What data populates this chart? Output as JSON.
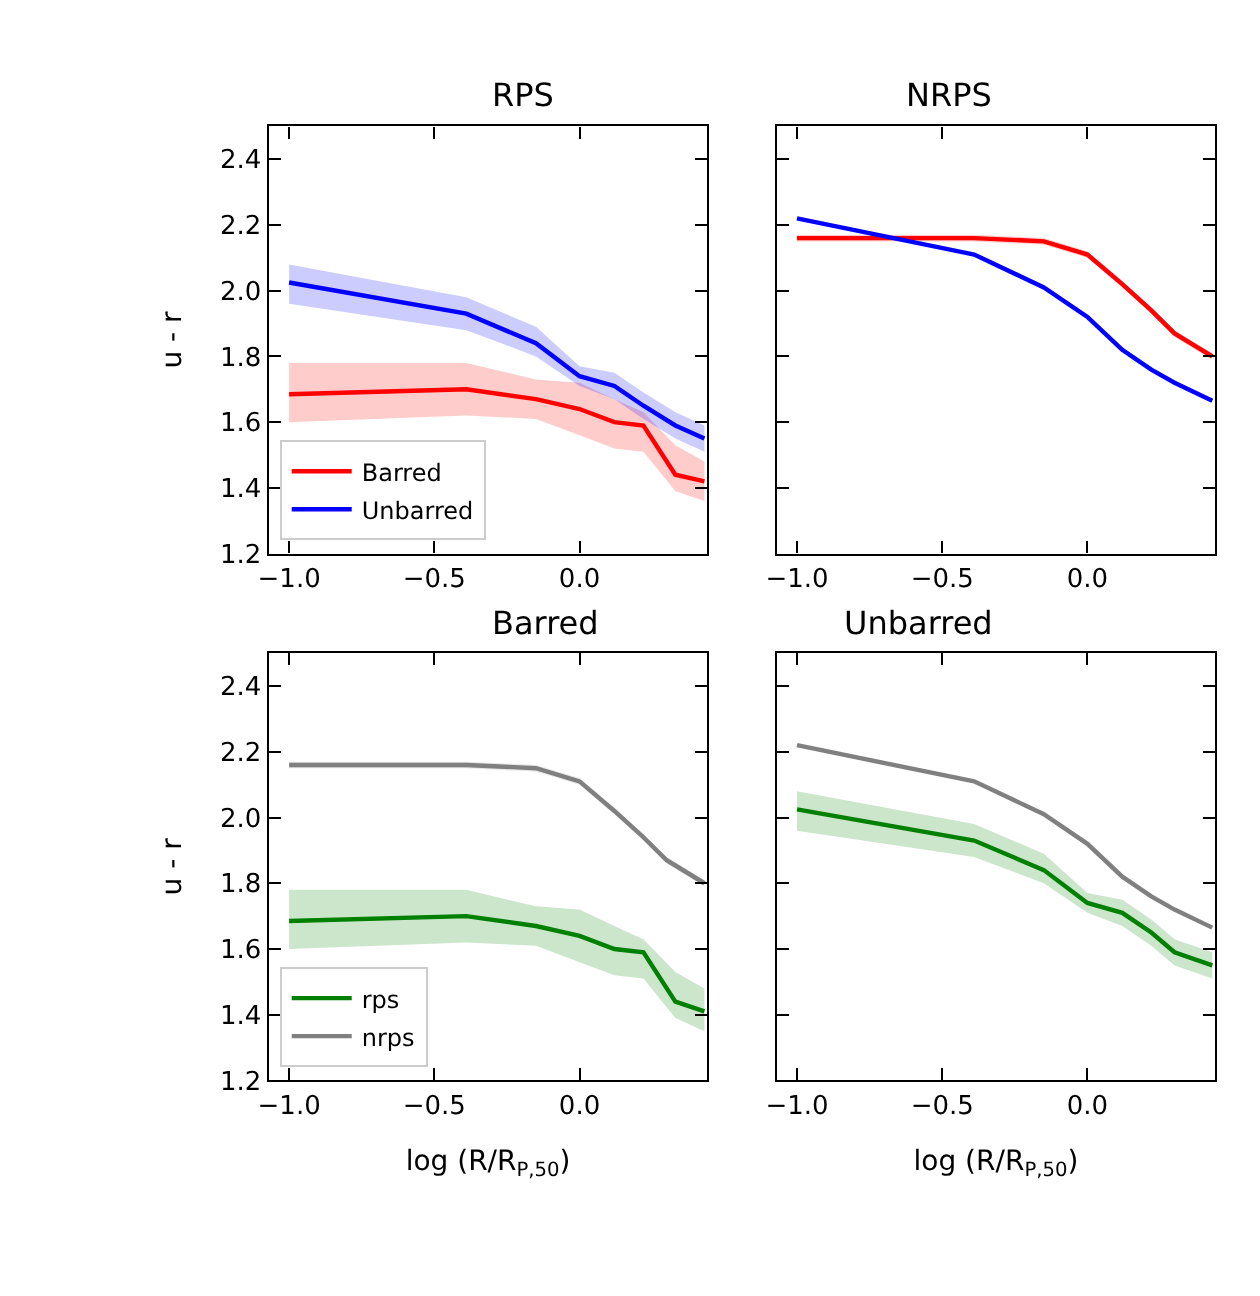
{
  "chart_data": [
    {
      "type": "line",
      "title": "RPS",
      "ylabel": "u - r",
      "legend": "bottom left",
      "xlim": [
        -1.07,
        0.44
      ],
      "ylim": [
        1.2,
        2.5
      ],
      "xticks": [
        {
          "value": -1.0,
          "label": "−1.0"
        },
        {
          "value": -0.5,
          "label": "−0.5"
        },
        {
          "value": 0.0,
          "label": "0.0"
        }
      ],
      "yticks": [
        {
          "value": 1.2,
          "label": "1.2"
        },
        {
          "value": 1.4,
          "label": "1.4"
        },
        {
          "value": 1.6,
          "label": "1.6"
        },
        {
          "value": 1.8,
          "label": "1.8"
        },
        {
          "value": 2.0,
          "label": "2.0"
        },
        {
          "value": 2.2,
          "label": "2.2"
        },
        {
          "value": 2.4,
          "label": "2.4"
        }
      ],
      "x": [
        -1.0,
        -0.39,
        -0.15,
        0.0,
        0.12,
        0.22,
        0.33,
        0.43
      ],
      "series": [
        {
          "name": "Barred",
          "color": "#ff0000",
          "values": [
            1.685,
            1.7,
            1.67,
            1.64,
            1.6,
            1.59,
            1.44,
            1.42
          ],
          "lower": [
            1.6,
            1.62,
            1.61,
            1.56,
            1.52,
            1.51,
            1.39,
            1.36
          ],
          "upper": [
            1.78,
            1.78,
            1.73,
            1.72,
            1.67,
            1.63,
            1.53,
            1.48
          ]
        },
        {
          "name": "Unbarred",
          "color": "#0000ff",
          "values": [
            2.025,
            1.93,
            1.84,
            1.74,
            1.71,
            1.65,
            1.59,
            1.55
          ],
          "lower": [
            1.96,
            1.88,
            1.8,
            1.71,
            1.67,
            1.61,
            1.55,
            1.51
          ],
          "upper": [
            2.08,
            1.98,
            1.89,
            1.77,
            1.75,
            1.69,
            1.63,
            1.59
          ]
        }
      ]
    },
    {
      "type": "line",
      "title": "NRPS",
      "tick_labels": "x",
      "xlim": [
        -1.07,
        0.44
      ],
      "ylim": [
        1.2,
        2.5
      ],
      "xticks": [
        {
          "value": -1.0,
          "label": "−1.0"
        },
        {
          "value": -0.5,
          "label": "−0.5"
        },
        {
          "value": 0.0,
          "label": "0.0"
        }
      ],
      "yticks": [
        1.2,
        1.4,
        1.6,
        1.8,
        2.0,
        2.2,
        2.4
      ],
      "x": [
        -1.0,
        -0.39,
        -0.15,
        0.0,
        0.12,
        0.22,
        0.3,
        0.43
      ],
      "series": [
        {
          "color": "#ff0000",
          "values": [
            2.16,
            2.16,
            2.15,
            2.11,
            2.02,
            1.94,
            1.87,
            1.8
          ],
          "lower": [
            2.15,
            2.15,
            2.14,
            2.1,
            2.01,
            1.93,
            1.86,
            1.79
          ],
          "upper": [
            2.17,
            2.17,
            2.16,
            2.12,
            2.03,
            1.95,
            1.88,
            1.81
          ]
        },
        {
          "color": "#0000ff",
          "values": [
            2.22,
            2.11,
            2.01,
            1.92,
            1.82,
            1.76,
            1.72,
            1.665
          ]
        }
      ]
    },
    {
      "type": "line",
      "title": "Barred",
      "ylabel": "u - r",
      "xlabel": "log (R/R$_{P,50}$)",
      "legend": "bottom left",
      "xlim": [
        -1.07,
        0.44
      ],
      "ylim": [
        1.2,
        2.5
      ],
      "xticks": [
        {
          "value": -1.0,
          "label": "−1.0"
        },
        {
          "value": -0.5,
          "label": "−0.5"
        },
        {
          "value": 0.0,
          "label": "0.0"
        }
      ],
      "yticks": [
        {
          "value": 1.2,
          "label": "1.2"
        },
        {
          "value": 1.4,
          "label": "1.4"
        },
        {
          "value": 1.6,
          "label": "1.6"
        },
        {
          "value": 1.8,
          "label": "1.8"
        },
        {
          "value": 2.0,
          "label": "2.0"
        },
        {
          "value": 2.2,
          "label": "2.2"
        },
        {
          "value": 2.4,
          "label": "2.4"
        }
      ],
      "x": [
        -1.0,
        -0.39,
        -0.15,
        0.0,
        0.12,
        0.22,
        0.33,
        0.43
      ],
      "series": [
        {
          "name": "rps",
          "color": "#008000",
          "values": [
            1.685,
            1.7,
            1.67,
            1.64,
            1.6,
            1.59,
            1.44,
            1.41
          ],
          "lower": [
            1.6,
            1.62,
            1.61,
            1.56,
            1.52,
            1.51,
            1.39,
            1.35
          ],
          "upper": [
            1.78,
            1.78,
            1.73,
            1.72,
            1.67,
            1.63,
            1.53,
            1.48
          ]
        },
        {
          "name": "nrps",
          "color": "#808080",
          "x": [
            -1.0,
            -0.39,
            -0.15,
            0.0,
            0.12,
            0.22,
            0.3,
            0.43
          ],
          "values": [
            2.16,
            2.16,
            2.15,
            2.11,
            2.02,
            1.94,
            1.87,
            1.8
          ],
          "lower": [
            2.15,
            2.15,
            2.14,
            2.1,
            2.01,
            1.93,
            1.86,
            1.79
          ],
          "upper": [
            2.17,
            2.17,
            2.16,
            2.12,
            2.03,
            1.95,
            1.88,
            1.81
          ]
        }
      ]
    },
    {
      "type": "line",
      "title": "Unbarred",
      "xlabel": "log (R/R$_{P,50}$)",
      "tick_labels": "x",
      "xlim": [
        -1.07,
        0.44
      ],
      "ylim": [
        1.2,
        2.5
      ],
      "xticks": [
        {
          "value": -1.0,
          "label": "−1.0"
        },
        {
          "value": -0.5,
          "label": "−0.5"
        },
        {
          "value": 0.0,
          "label": "0.0"
        }
      ],
      "yticks": [
        1.2,
        1.4,
        1.6,
        1.8,
        2.0,
        2.2,
        2.4
      ],
      "x": [
        -1.0,
        -0.39,
        -0.15,
        0.0,
        0.12,
        0.22,
        0.3,
        0.43
      ],
      "series": [
        {
          "color": "#008000",
          "values": [
            2.025,
            1.93,
            1.84,
            1.74,
            1.71,
            1.65,
            1.59,
            1.55
          ],
          "lower": [
            1.96,
            1.88,
            1.8,
            1.71,
            1.67,
            1.61,
            1.55,
            1.51
          ],
          "upper": [
            2.08,
            1.98,
            1.89,
            1.77,
            1.75,
            1.69,
            1.63,
            1.59
          ]
        },
        {
          "color": "#808080",
          "values": [
            2.22,
            2.11,
            2.01,
            1.92,
            1.82,
            1.76,
            1.72,
            1.665
          ]
        }
      ]
    }
  ]
}
